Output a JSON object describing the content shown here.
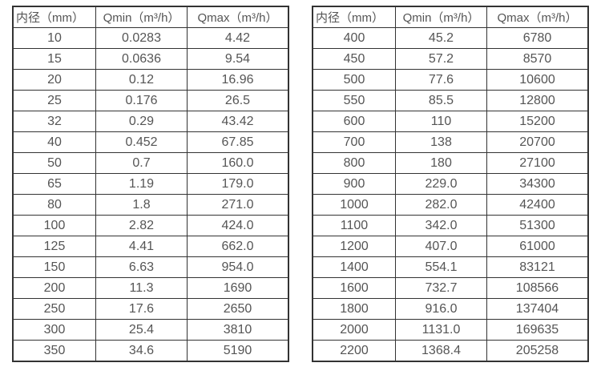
{
  "colors": {
    "background": "#ffffff",
    "border": "#333333",
    "text": "#555555"
  },
  "tables": [
    {
      "name": "flow-spec-small-diameter",
      "headers": [
        "内径（mm）",
        "Qmin（m³/h）",
        "Qmax（m³/h）"
      ],
      "rows": [
        [
          "10",
          "0.0283",
          "4.42"
        ],
        [
          "15",
          "0.0636",
          "9.54"
        ],
        [
          "20",
          "0.12",
          "16.96"
        ],
        [
          "25",
          "0.176",
          "26.5"
        ],
        [
          "32",
          "0.29",
          "43.42"
        ],
        [
          "40",
          "0.452",
          "67.85"
        ],
        [
          "50",
          "0.7",
          "160.0"
        ],
        [
          "65",
          "1.19",
          "179.0"
        ],
        [
          "80",
          "1.8",
          "271.0"
        ],
        [
          "100",
          "2.82",
          "424.0"
        ],
        [
          "125",
          "4.41",
          "662.0"
        ],
        [
          "150",
          "6.63",
          "954.0"
        ],
        [
          "200",
          "11.3",
          "1690"
        ],
        [
          "250",
          "17.6",
          "2650"
        ],
        [
          "300",
          "25.4",
          "3810"
        ],
        [
          "350",
          "34.6",
          "5190"
        ]
      ]
    },
    {
      "name": "flow-spec-large-diameter",
      "headers": [
        "内径（mm）",
        "Qmin（m³/h）",
        "Qmax（m³/h）"
      ],
      "rows": [
        [
          "400",
          "45.2",
          "6780"
        ],
        [
          "450",
          "57.2",
          "8570"
        ],
        [
          "500",
          "77.6",
          "10600"
        ],
        [
          "550",
          "85.5",
          "12800"
        ],
        [
          "600",
          "110",
          "15200"
        ],
        [
          "700",
          "138",
          "20700"
        ],
        [
          "800",
          "180",
          "27100"
        ],
        [
          "900",
          "229.0",
          "34300"
        ],
        [
          "1000",
          "282.0",
          "42400"
        ],
        [
          "1100",
          "342.0",
          "51300"
        ],
        [
          "1200",
          "407.0",
          "61000"
        ],
        [
          "1400",
          "554.1",
          "83121"
        ],
        [
          "1600",
          "732.7",
          "108566"
        ],
        [
          "1800",
          "916.0",
          "137404"
        ],
        [
          "2000",
          "1131.0",
          "169635"
        ],
        [
          "2200",
          "1368.4",
          "205258"
        ]
      ]
    }
  ]
}
